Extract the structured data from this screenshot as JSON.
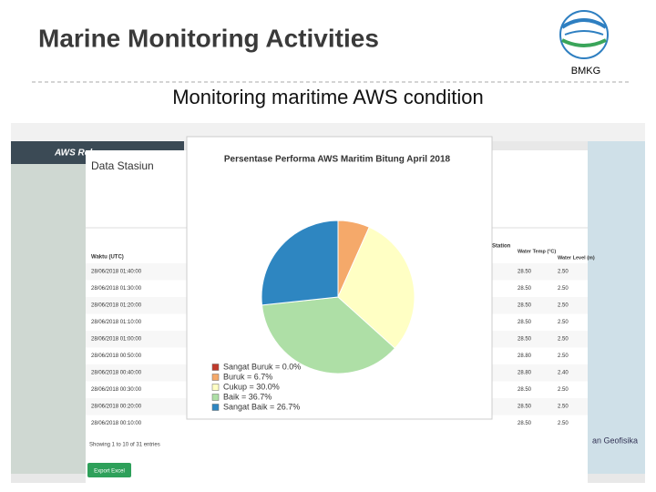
{
  "header": {
    "title": "Marine Monitoring Activities",
    "logo_text": "BMKG",
    "subtitle": "Monitoring maritime AWS condition"
  },
  "screenshot": {
    "app_title": "AWS Rekayasa",
    "panel_title": "Data Stasiun",
    "columns": {
      "time": "Waktu (UTC)",
      "station": "Station",
      "temp": "Water Temp (°C)",
      "level": "Water Level (m)"
    },
    "rows": [
      [
        "28/06/2018 01:40:00",
        "28.50",
        "2.50"
      ],
      [
        "28/06/2018 01:30:00",
        "28.50",
        "2.50"
      ],
      [
        "28/06/2018 01:20:00",
        "28.50",
        "2.50"
      ],
      [
        "28/06/2018 01:10:00",
        "28.50",
        "2.50"
      ],
      [
        "28/06/2018 01:00:00",
        "28.50",
        "2.50"
      ],
      [
        "28/06/2018 00:50:00",
        "28.80",
        "2.50"
      ],
      [
        "28/06/2018 00:40:00",
        "28.80",
        "2.40"
      ],
      [
        "28/06/2018 00:30:00",
        "28.50",
        "2.50"
      ],
      [
        "28/06/2018 00:20:00",
        "28.50",
        "2.50"
      ],
      [
        "28/06/2018 00:10:00",
        "28.50",
        "2.50"
      ]
    ],
    "footer": "Showing 1 to 10 of 31 entries",
    "button": "Export Excel",
    "map_footer": "an Geofisika"
  },
  "chart_data": {
    "type": "pie",
    "title": "Persentase Performa AWS Maritim Bitung April 2018",
    "values": [
      0.0,
      6.7,
      30.0,
      36.7,
      26.7
    ],
    "value_labels": [
      "Sangat Buruk = 0.0%",
      "Buruk = 6.7%",
      "Cukup = 30.0%",
      "Baik = 36.7%",
      "Sangat Baik = 26.7%"
    ],
    "colors": [
      "#c0392b",
      "#f5a96a",
      "#ffffc4",
      "#aedfa6",
      "#2e86c1"
    ]
  }
}
